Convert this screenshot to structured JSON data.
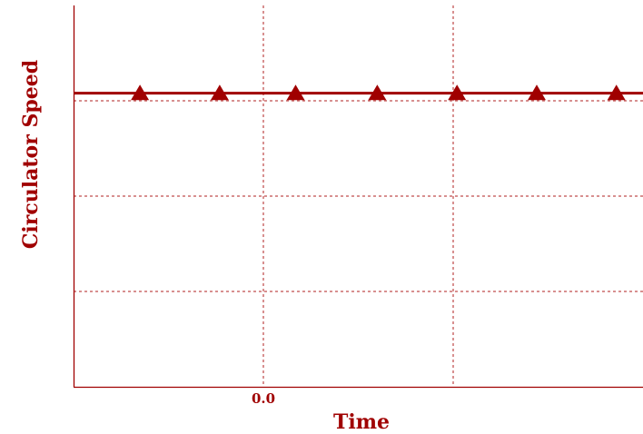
{
  "chart_data": {
    "type": "line",
    "title": "",
    "xlabel": "Time",
    "ylabel": "Circulator Speed",
    "grid": true,
    "legend": "none",
    "xlim": [
      -1.0,
      2.0
    ],
    "ylim": [
      0.0,
      4.0
    ],
    "x_ticks": [
      {
        "value": 0.0,
        "label": "0.0"
      },
      {
        "value": 1.0,
        "label": ""
      }
    ],
    "y_ticks": [
      1.0,
      2.0,
      3.0
    ],
    "series": [
      {
        "line_style": "solid",
        "marker": "triangle",
        "x": [
          -1.0,
          -0.65,
          -0.23,
          0.17,
          0.6,
          1.02,
          1.44,
          1.86,
          2.0
        ],
        "y": [
          3.08,
          3.08,
          3.08,
          3.08,
          3.08,
          3.08,
          3.08,
          3.08,
          3.08
        ],
        "markers_x": [
          -0.65,
          -0.23,
          0.17,
          0.6,
          1.02,
          1.44,
          1.86
        ]
      }
    ],
    "colors": {
      "series": "#a00000",
      "grid": "#b22222",
      "axis": "#a00000",
      "text": "#a00000"
    }
  }
}
